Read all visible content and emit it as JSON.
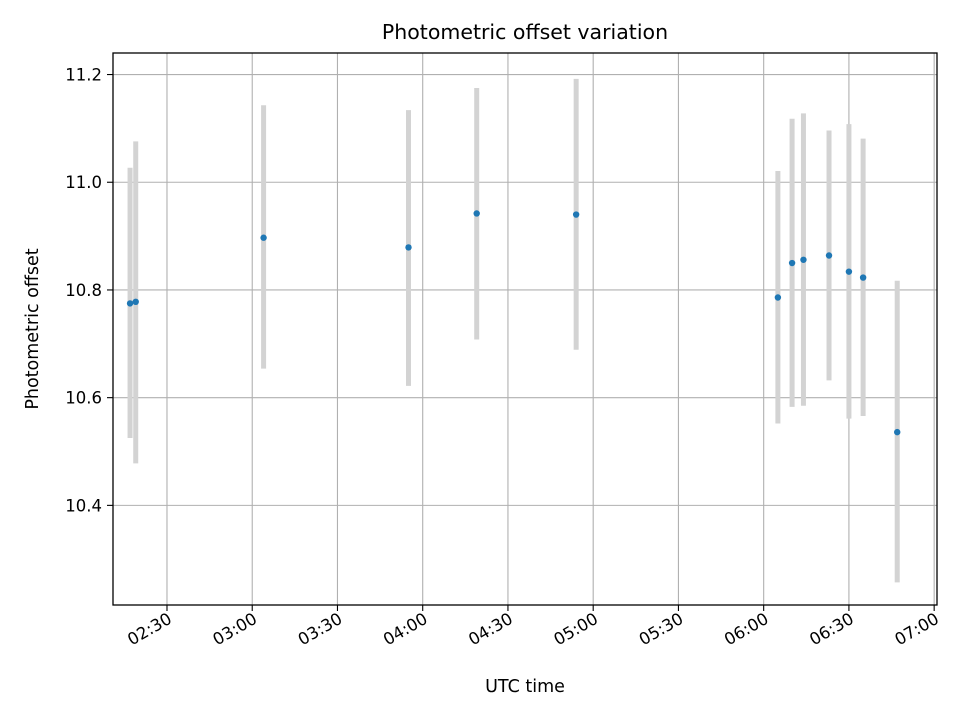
{
  "chart_data": {
    "type": "scatter",
    "title": "Photometric offset variation",
    "xlabel": "UTC time",
    "ylabel": "Photometric offset",
    "x_axis_kind": "time",
    "xlim": [
      "02:11",
      "07:01"
    ],
    "ylim": [
      10.215,
      11.24
    ],
    "grid": true,
    "x_ticks": [
      "02:30",
      "03:00",
      "03:30",
      "04:00",
      "04:30",
      "05:00",
      "05:30",
      "06:00",
      "06:30",
      "07:00"
    ],
    "y_ticks": [
      10.4,
      10.6,
      10.8,
      11.0,
      11.2
    ],
    "y_tick_labels": [
      "10.4",
      "10.6",
      "10.8",
      "11.0",
      "11.2"
    ],
    "marker_color": "#1f77b4",
    "errorbar_color": "#d3d3d3",
    "points": [
      {
        "time": "02:17",
        "value": 10.775,
        "err_low": 10.525,
        "err_high": 11.027
      },
      {
        "time": "02:19",
        "value": 10.778,
        "err_low": 10.478,
        "err_high": 11.076
      },
      {
        "time": "03:04",
        "value": 10.897,
        "err_low": 10.654,
        "err_high": 11.143
      },
      {
        "time": "03:55",
        "value": 10.879,
        "err_low": 10.622,
        "err_high": 11.134
      },
      {
        "time": "04:19",
        "value": 10.942,
        "err_low": 10.708,
        "err_high": 11.175
      },
      {
        "time": "04:54",
        "value": 10.94,
        "err_low": 10.689,
        "err_high": 11.192
      },
      {
        "time": "06:05",
        "value": 10.786,
        "err_low": 10.552,
        "err_high": 11.021
      },
      {
        "time": "06:10",
        "value": 10.85,
        "err_low": 10.583,
        "err_high": 11.118
      },
      {
        "time": "06:14",
        "value": 10.856,
        "err_low": 10.585,
        "err_high": 11.128
      },
      {
        "time": "06:23",
        "value": 10.864,
        "err_low": 10.632,
        "err_high": 11.096
      },
      {
        "time": "06:30",
        "value": 10.834,
        "err_low": 10.561,
        "err_high": 11.108
      },
      {
        "time": "06:35",
        "value": 10.823,
        "err_low": 10.566,
        "err_high": 11.081
      },
      {
        "time": "06:47",
        "value": 10.536,
        "err_low": 10.257,
        "err_high": 10.817
      }
    ]
  }
}
